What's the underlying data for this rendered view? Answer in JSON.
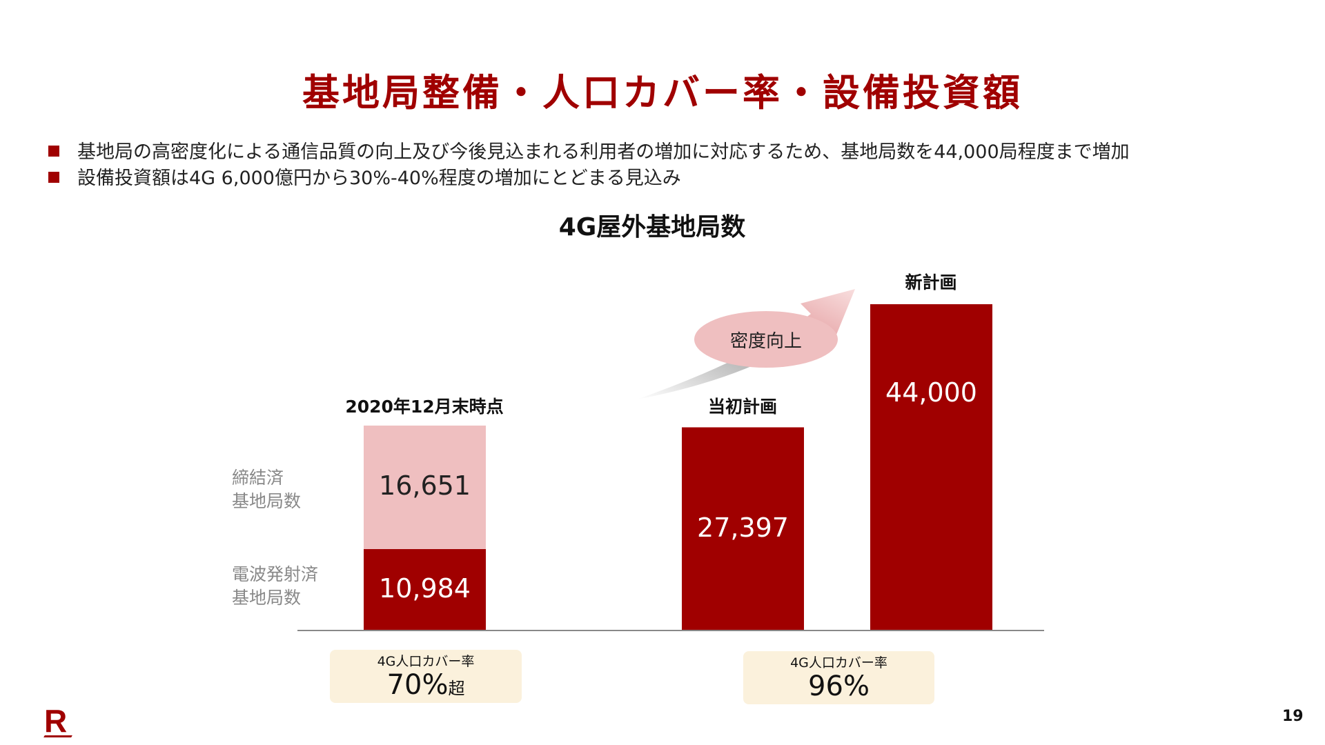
{
  "title": "基地局整備・人口カバー率・設備投資額",
  "bullets": [
    "基地局の高密度化による通信品質の向上及び今後見込まれる利用者の増加に対応するため、基地局数を44,000局程度まで増加",
    "設備投資額は4G 6,000億円から30%-40%程度の増加にとどまる見込み"
  ],
  "colors": {
    "accent": "#a00000",
    "light": "#efbfc0",
    "coverage_bg": "#fbf1dc"
  },
  "chart_data": {
    "type": "bar",
    "title": "4G屋外基地局数",
    "categories": [
      "2020年12月末時点",
      "当初計画",
      "新計画"
    ],
    "series": [
      {
        "name": "電波発射済基地局数",
        "values": [
          10984,
          27397,
          44000
        ],
        "labels": [
          "10,984",
          "27,397",
          "44,000"
        ]
      },
      {
        "name": "締結済基地局数",
        "values": [
          16651,
          0,
          0
        ],
        "labels": [
          "16,651",
          "",
          ""
        ]
      }
    ],
    "side_labels": [
      [
        "締結済",
        "基地局数"
      ],
      [
        "電波発射済",
        "基地局数"
      ]
    ],
    "annotation": "密度向上",
    "ylim": [
      0,
      44000
    ],
    "grid": false
  },
  "coverage": [
    {
      "label": "4G人口カバー率",
      "value": "70%",
      "suffix": "超"
    },
    {
      "label": "4G人口カバー率",
      "value": "96%",
      "suffix": ""
    }
  ],
  "logo": "R",
  "page_number": "19"
}
